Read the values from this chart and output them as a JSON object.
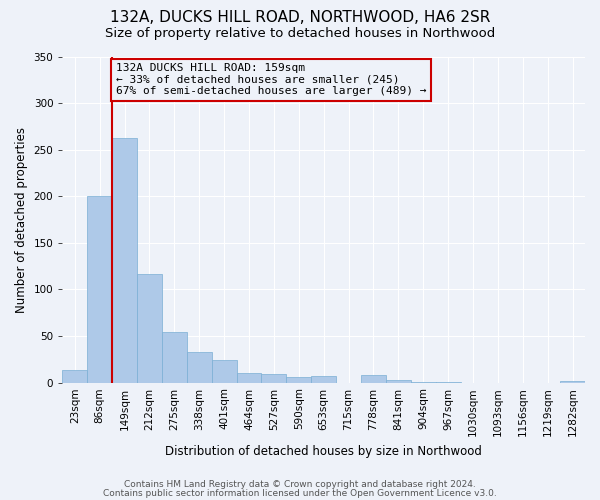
{
  "title": "132A, DUCKS HILL ROAD, NORTHWOOD, HA6 2SR",
  "subtitle": "Size of property relative to detached houses in Northwood",
  "xlabel": "Distribution of detached houses by size in Northwood",
  "ylabel": "Number of detached properties",
  "bin_labels": [
    "23sqm",
    "86sqm",
    "149sqm",
    "212sqm",
    "275sqm",
    "338sqm",
    "401sqm",
    "464sqm",
    "527sqm",
    "590sqm",
    "653sqm",
    "715sqm",
    "778sqm",
    "841sqm",
    "904sqm",
    "967sqm",
    "1030sqm",
    "1093sqm",
    "1156sqm",
    "1219sqm",
    "1282sqm"
  ],
  "bar_heights": [
    13,
    200,
    262,
    117,
    54,
    33,
    24,
    10,
    9,
    6,
    7,
    0,
    8,
    3,
    1,
    1,
    0,
    0,
    0,
    0,
    2
  ],
  "bar_color": "#aec9e8",
  "bar_edgecolor": "#7aafd4",
  "marker_line_color": "#cc0000",
  "annotation_line1": "132A DUCKS HILL ROAD: 159sqm",
  "annotation_line2": "← 33% of detached houses are smaller (245)",
  "annotation_line3": "67% of semi-detached houses are larger (489) →",
  "annotation_box_edgecolor": "#cc0000",
  "ylim": [
    0,
    350
  ],
  "yticks": [
    0,
    50,
    100,
    150,
    200,
    250,
    300,
    350
  ],
  "footer1": "Contains HM Land Registry data © Crown copyright and database right 2024.",
  "footer2": "Contains public sector information licensed under the Open Government Licence v3.0.",
  "background_color": "#eef2f9",
  "grid_color": "#ffffff",
  "title_fontsize": 11,
  "subtitle_fontsize": 9.5,
  "axis_label_fontsize": 8.5,
  "tick_fontsize": 7.5,
  "footer_fontsize": 6.5,
  "annotation_fontsize": 8
}
